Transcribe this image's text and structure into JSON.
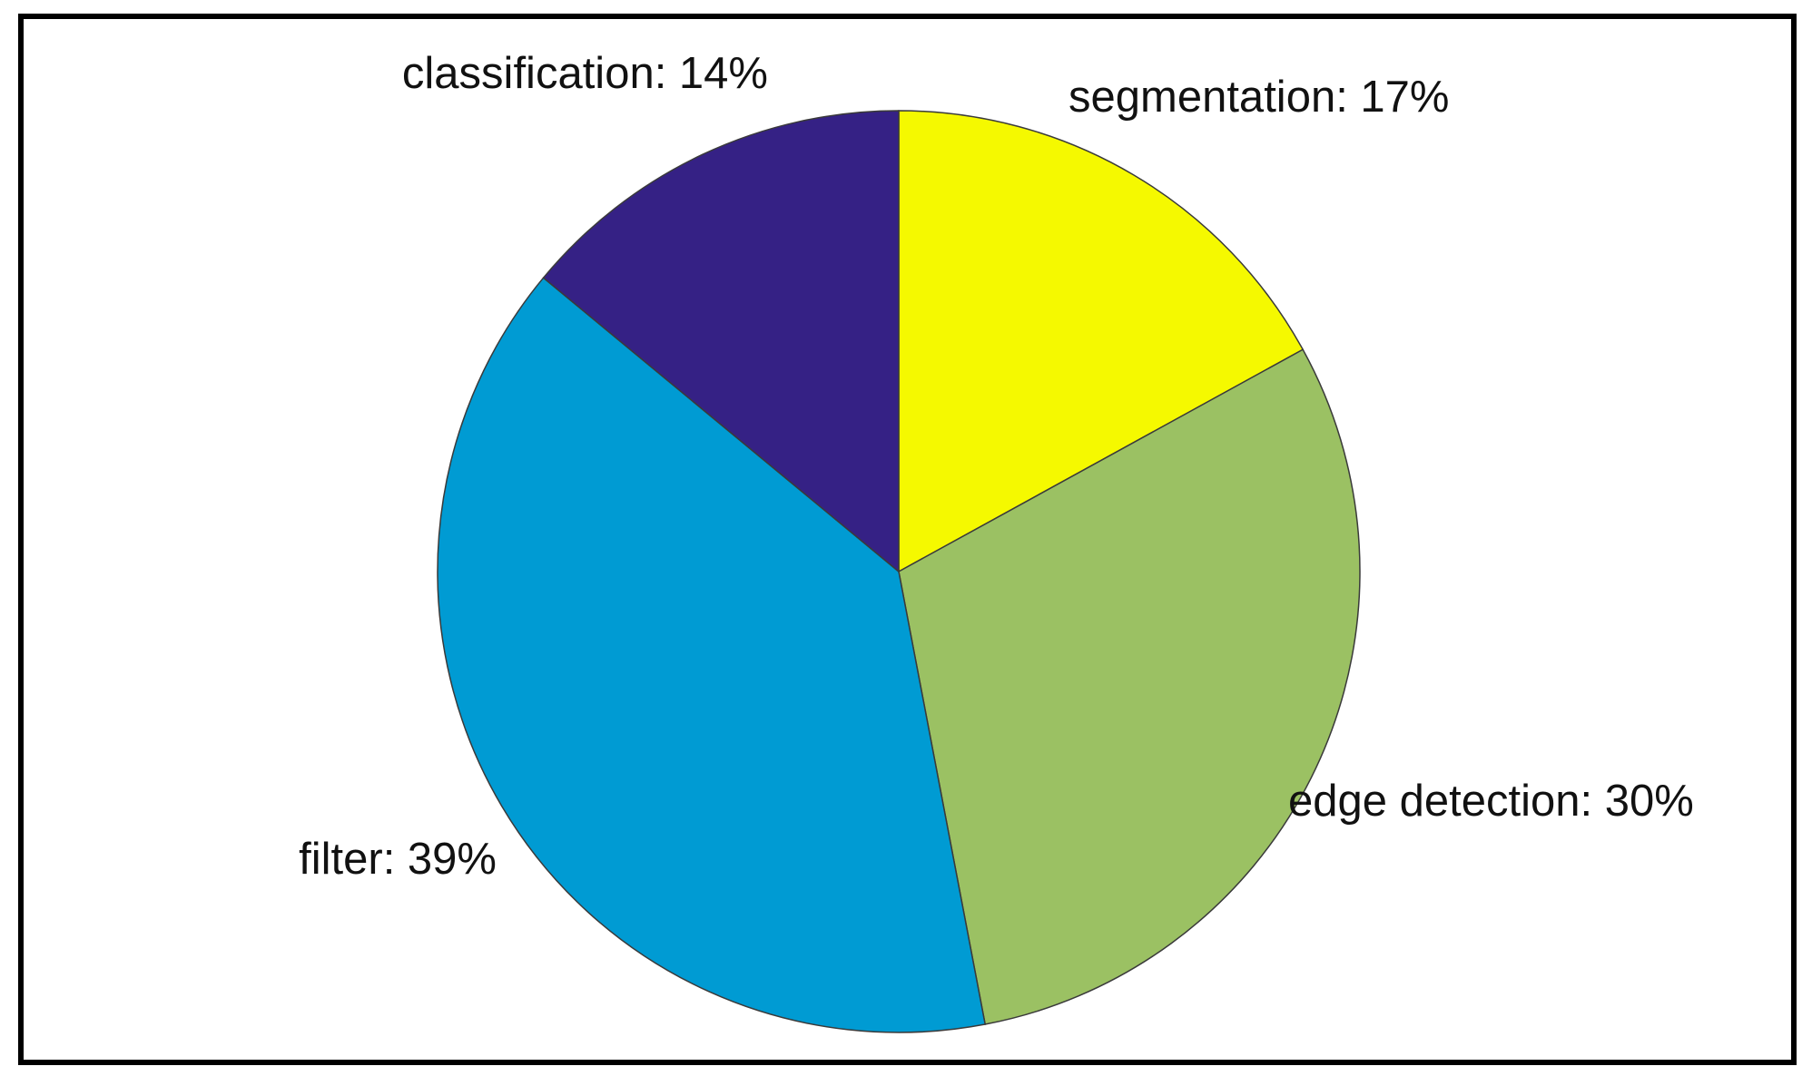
{
  "chart_data": {
    "type": "pie",
    "values": [
      17,
      30,
      39,
      14
    ],
    "value_labels": [
      "segmentation: 17%",
      "edge detection: 30%",
      "filter: 39%",
      "classification: 14%"
    ],
    "colors": [
      "#f5f900",
      "#9bc163",
      "#009bd3",
      "#352185"
    ]
  }
}
